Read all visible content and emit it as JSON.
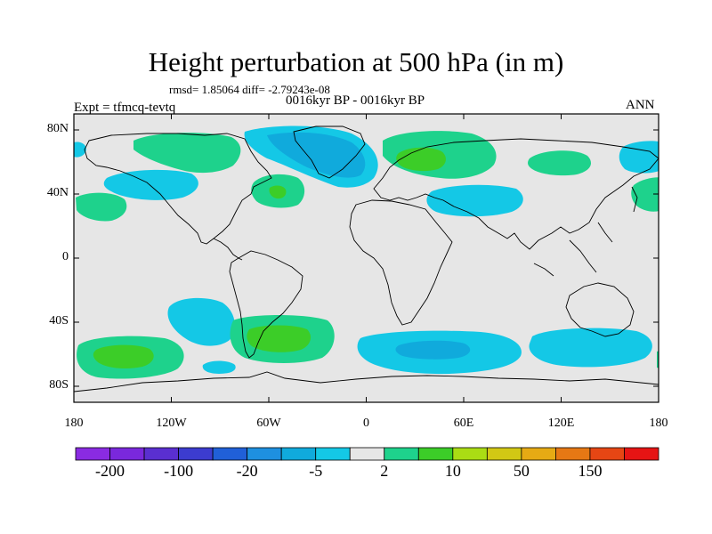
{
  "title": "Height perturbation at 500 hPa (in m)",
  "stats_text": "rmsd= 1.85064 diff= -2.79243e-08",
  "period_text": "0016kyr BP - 0016kyr BP",
  "expt_text": "Expt = tfmcq-tevtq",
  "season_text": "ANN",
  "map": {
    "projection": "cylindrical equidistant",
    "lon_range": [
      -180,
      180
    ],
    "lat_range": [
      -90,
      90
    ],
    "background_color": "#e6e6e6",
    "y_ticks": [
      {
        "lat": 80,
        "label": "80N"
      },
      {
        "lat": 40,
        "label": "40N"
      },
      {
        "lat": 0,
        "label": "0"
      },
      {
        "lat": -40,
        "label": "40S"
      },
      {
        "lat": -80,
        "label": "80S"
      }
    ],
    "x_ticks": [
      {
        "lon": -180,
        "label": "180"
      },
      {
        "lon": -120,
        "label": "120W"
      },
      {
        "lon": -60,
        "label": "60W"
      },
      {
        "lon": 0,
        "label": "0"
      },
      {
        "lon": 60,
        "label": "60E"
      },
      {
        "lon": 120,
        "label": "120E"
      },
      {
        "lon": 180,
        "label": "180"
      }
    ]
  },
  "colorbar": {
    "colors": [
      "#8a2be2",
      "#7a28dc",
      "#5a2fd0",
      "#3c3ccf",
      "#2060d8",
      "#1e90e0",
      "#10aadc",
      "#14c8e6",
      "#e6e6e6",
      "#1ed28c",
      "#3ccd28",
      "#aadc14",
      "#d2c814",
      "#e6aa14",
      "#e67814",
      "#e64614",
      "#e61414"
    ],
    "tick_labels": [
      {
        "after_index": 0,
        "label": "-200"
      },
      {
        "after_index": 2,
        "label": "-100"
      },
      {
        "after_index": 4,
        "label": "-20"
      },
      {
        "after_index": 6,
        "label": "-5"
      },
      {
        "after_index": 8,
        "label": "2"
      },
      {
        "after_index": 10,
        "label": "10"
      },
      {
        "after_index": 12,
        "label": "50"
      },
      {
        "after_index": 14,
        "label": "150"
      }
    ]
  },
  "anomaly_levels": {
    "weak_negative_color": "#14c8e6",
    "moderate_negative_color": "#10aadc",
    "strong_negative_color": "#1e90e0",
    "weak_positive_color": "#1ed28c",
    "moderate_positive_color": "#3ccd28"
  }
}
